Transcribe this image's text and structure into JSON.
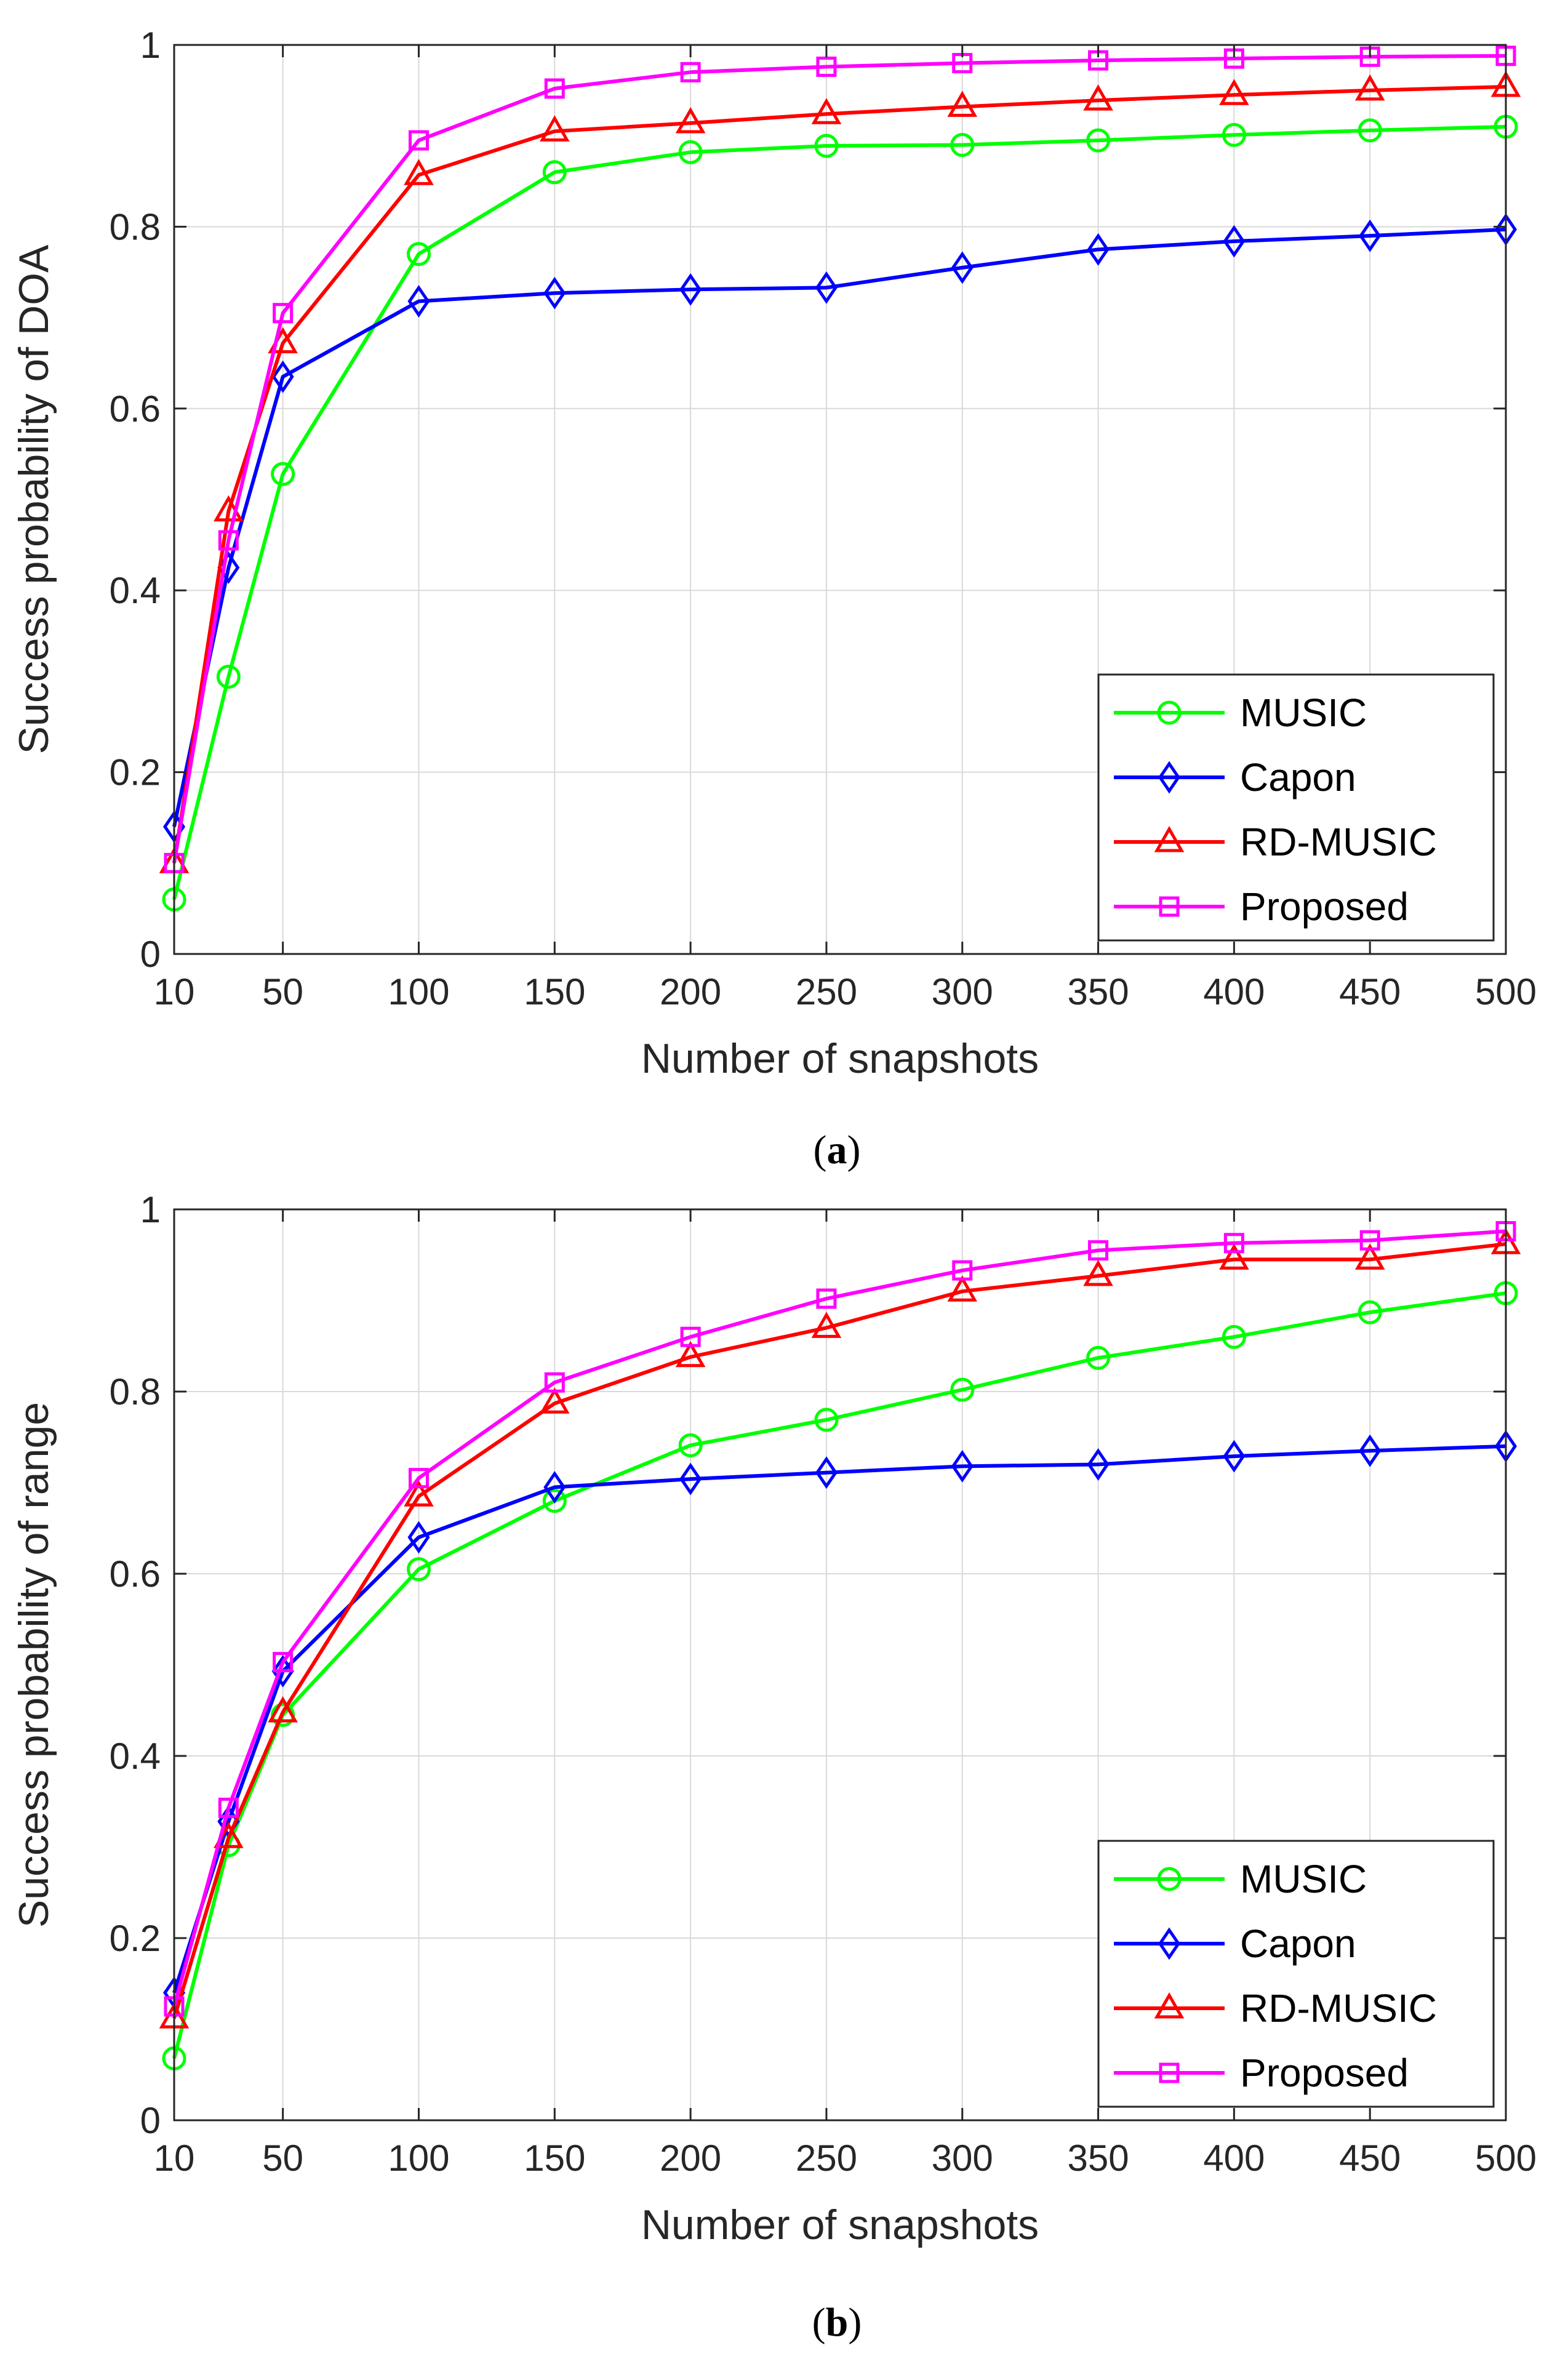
{
  "chart_data": [
    {
      "type": "line",
      "panel": "a",
      "caption": {
        "open": "(",
        "letter": "a",
        "close": ")"
      },
      "xlabel": "Number of snapshots",
      "ylabel": "Success probability of DOA",
      "xlim": [
        10,
        500
      ],
      "ylim": [
        0,
        1
      ],
      "grid": true,
      "legend_position": "bottom-right",
      "xticks": [
        10,
        50,
        100,
        150,
        200,
        250,
        300,
        350,
        400,
        450,
        500
      ],
      "xtick_labels": [
        "10",
        "50",
        "100",
        "150",
        "200",
        "250",
        "300",
        "350",
        "400",
        "450",
        "500"
      ],
      "yticks": [
        0,
        0.2,
        0.4,
        0.6,
        0.8,
        1
      ],
      "ytick_labels": [
        "0",
        "0.2",
        "0.4",
        "0.6",
        "0.8",
        "1"
      ],
      "x": [
        10,
        30,
        50,
        100,
        150,
        200,
        250,
        300,
        350,
        400,
        450,
        500
      ],
      "series": [
        {
          "name": "MUSIC",
          "color": "#00ff00",
          "marker": "circle",
          "values": [
            0.06,
            0.305,
            0.528,
            0.77,
            0.86,
            0.882,
            0.889,
            0.89,
            0.895,
            0.901,
            0.906,
            0.91
          ]
        },
        {
          "name": "Capon",
          "color": "#0000ff",
          "marker": "diamond",
          "values": [
            0.14,
            0.425,
            0.635,
            0.718,
            0.727,
            0.731,
            0.733,
            0.755,
            0.775,
            0.784,
            0.79,
            0.797
          ]
        },
        {
          "name": "RD-MUSIC",
          "color": "#ff0000",
          "marker": "triangle",
          "values": [
            0.1,
            0.487,
            0.672,
            0.857,
            0.905,
            0.914,
            0.924,
            0.932,
            0.939,
            0.945,
            0.95,
            0.954
          ]
        },
        {
          "name": "Proposed",
          "color": "#ff00ff",
          "marker": "square",
          "values": [
            0.1,
            0.455,
            0.705,
            0.895,
            0.952,
            0.97,
            0.976,
            0.98,
            0.983,
            0.985,
            0.987,
            0.988
          ]
        }
      ]
    },
    {
      "type": "line",
      "panel": "b",
      "caption": {
        "open": "(",
        "letter": "b",
        "close": ")"
      },
      "xlabel": "Number of snapshots",
      "ylabel": "Success probability of range",
      "xlim": [
        10,
        500
      ],
      "ylim": [
        0,
        1
      ],
      "grid": true,
      "legend_position": "bottom-right",
      "xticks": [
        10,
        50,
        100,
        150,
        200,
        250,
        300,
        350,
        400,
        450,
        500
      ],
      "xtick_labels": [
        "10",
        "50",
        "100",
        "150",
        "200",
        "250",
        "300",
        "350",
        "400",
        "450",
        "500"
      ],
      "yticks": [
        0,
        0.2,
        0.4,
        0.6,
        0.8,
        1
      ],
      "ytick_labels": [
        "0",
        "0.2",
        "0.4",
        "0.6",
        "0.8",
        "1"
      ],
      "x": [
        10,
        30,
        50,
        100,
        150,
        200,
        250,
        300,
        350,
        400,
        450,
        500
      ],
      "series": [
        {
          "name": "MUSIC",
          "color": "#00ff00",
          "marker": "circle",
          "values": [
            0.068,
            0.302,
            0.445,
            0.605,
            0.68,
            0.741,
            0.769,
            0.802,
            0.837,
            0.86,
            0.887,
            0.908
          ]
        },
        {
          "name": "Capon",
          "color": "#0000ff",
          "marker": "diamond",
          "values": [
            0.14,
            0.328,
            0.493,
            0.64,
            0.695,
            0.704,
            0.711,
            0.718,
            0.72,
            0.729,
            0.735,
            0.74
          ]
        },
        {
          "name": "RD-MUSIC",
          "color": "#ff0000",
          "marker": "triangle",
          "values": [
            0.112,
            0.31,
            0.448,
            0.685,
            0.787,
            0.838,
            0.87,
            0.91,
            0.927,
            0.945,
            0.945,
            0.962
          ]
        },
        {
          "name": "Proposed",
          "color": "#ff00ff",
          "marker": "square",
          "values": [
            0.125,
            0.343,
            0.503,
            0.705,
            0.81,
            0.86,
            0.902,
            0.933,
            0.955,
            0.963,
            0.966,
            0.976
          ]
        }
      ]
    }
  ]
}
